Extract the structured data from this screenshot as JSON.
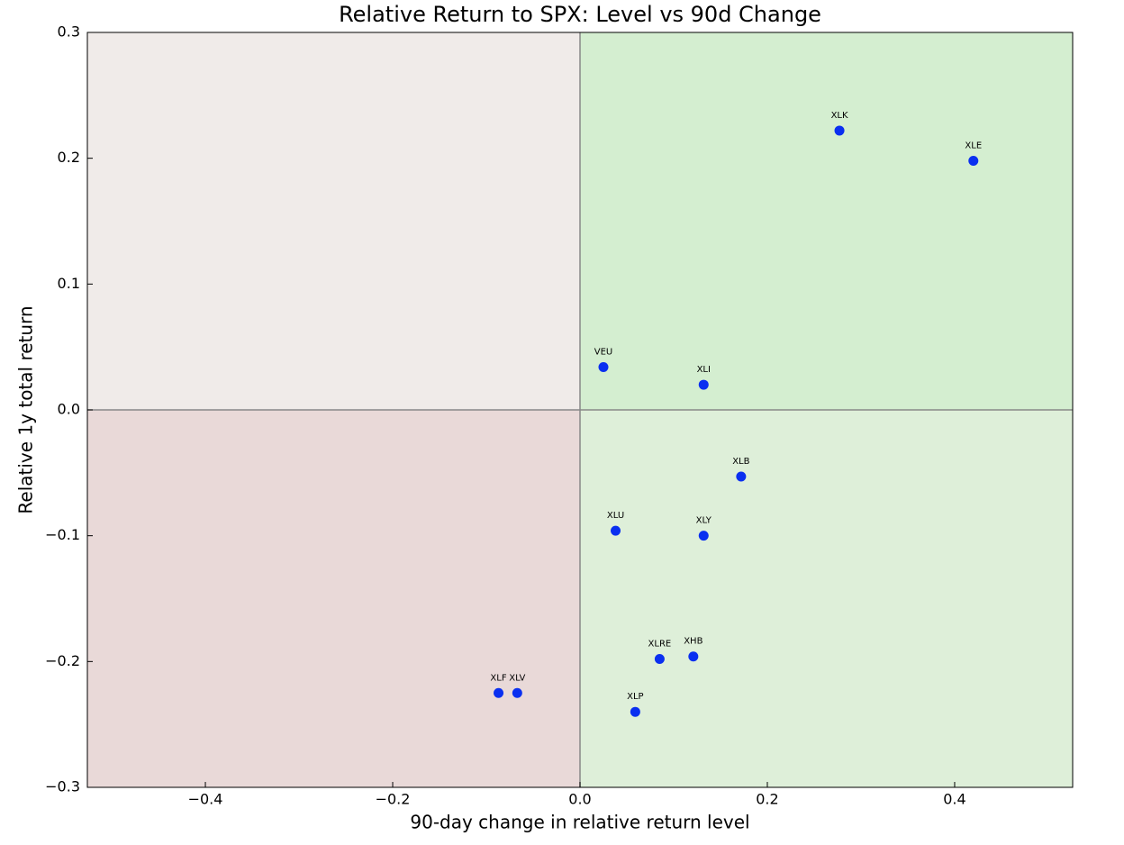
{
  "chart_data": {
    "type": "scatter",
    "title": "Relative Return to SPX: Level vs 90d Change",
    "x_label": "90-day change in relative return level",
    "y_label": "Relative 1y total return",
    "labels": [
      "XLK",
      "XLE",
      "VEU",
      "XLI",
      "XLB",
      "XLU",
      "XLY",
      "XLRE",
      "XHB",
      "XLP",
      "XLF",
      "XLV"
    ],
    "x": [
      0.277,
      0.42,
      0.025,
      0.132,
      0.172,
      0.038,
      0.132,
      0.085,
      0.121,
      0.059,
      -0.087,
      -0.067
    ],
    "values": [
      0.222,
      0.198,
      0.034,
      0.02,
      -0.053,
      -0.096,
      -0.1,
      -0.198,
      -0.196,
      -0.24,
      -0.225,
      -0.225
    ],
    "color": "#0a2ff0",
    "xlim": [
      -0.526,
      0.526
    ],
    "ylim": [
      -0.3,
      0.3
    ],
    "xticks": [
      {
        "value": -0.4,
        "label": "−0.4"
      },
      {
        "value": -0.2,
        "label": "−0.2"
      },
      {
        "value": 0.0,
        "label": "0.0"
      },
      0.2,
      0.4
    ],
    "yticks": [
      {
        "value": -0.3,
        "label": "−0.3"
      },
      {
        "value": -0.2,
        "label": "−0.2"
      },
      {
        "value": -0.1,
        "label": "−0.1"
      },
      {
        "value": 0.0,
        "label": "0.0"
      },
      0.1,
      0.2,
      0.3
    ]
  }
}
